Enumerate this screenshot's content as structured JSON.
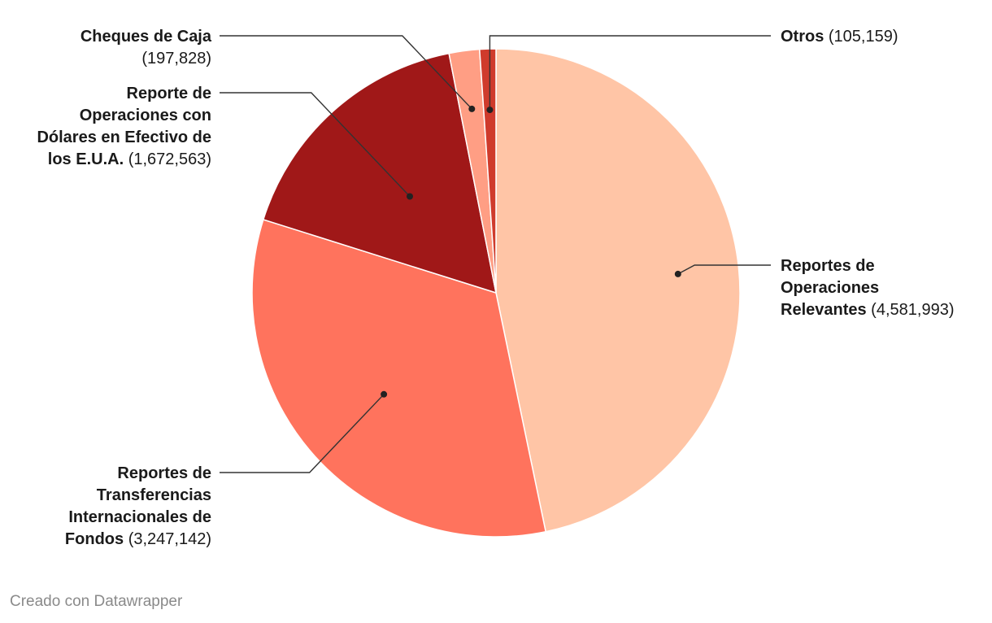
{
  "chart_data": {
    "type": "pie",
    "title": "",
    "start": "top, clockwise",
    "labels_shown_as": "name (value)",
    "slices": [
      {
        "name": "Reportes de Operaciones Relevantes",
        "value": 4581993,
        "value_label": "(4,581,993)",
        "color": "#ffc5a6",
        "label_lines": [
          "Reportes de",
          "Operaciones",
          "Relevantes"
        ]
      },
      {
        "name": "Reportes de Transferencias Internacionales de Fondos",
        "value": 3247142,
        "value_label": "(3,247,142)",
        "color": "#ff735d",
        "label_lines": [
          "Reportes de",
          "Transferencias",
          "Internacionales de",
          "Fondos"
        ]
      },
      {
        "name": "Reporte de Operaciones con Dólares en Efectivo de los E.U.A.",
        "value": 1672563,
        "value_label": "(1,672,563)",
        "color": "#a01818",
        "label_lines": [
          "Reporte de",
          "Operaciones con",
          "Dólares en Efectivo de",
          "los E.U.A."
        ]
      },
      {
        "name": "Cheques de Caja",
        "value": 197828,
        "value_label": "(197,828)",
        "color": "#ff9e84",
        "label_lines": [
          "Cheques de Caja"
        ]
      },
      {
        "name": "Otros",
        "value": 105159,
        "value_label": "(105,159)",
        "color": "#cf3b2c",
        "label_lines": [
          "Otros"
        ]
      }
    ]
  },
  "footer": {
    "credit": "Creado con Datawrapper"
  }
}
